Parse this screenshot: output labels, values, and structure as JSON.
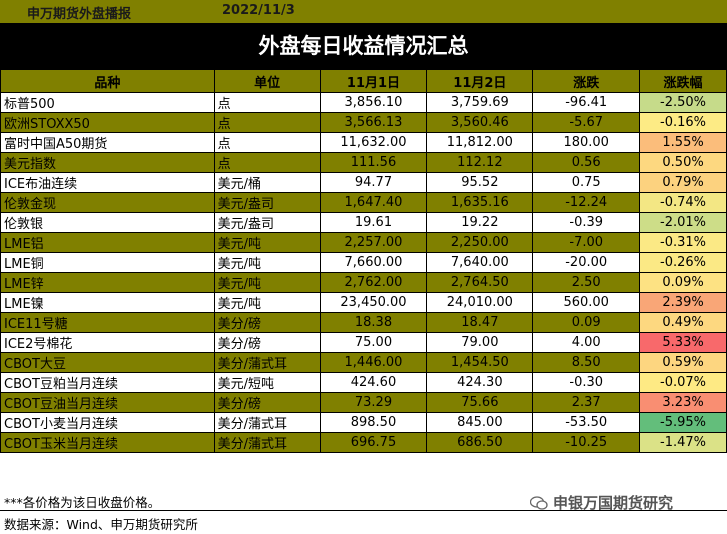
{
  "header": {
    "brand": "申万期货外盘播报",
    "date": "2022/11/3"
  },
  "title": "外盘每日收益情况汇总",
  "columns": [
    "品种",
    "单位",
    "11月1日",
    "11月2日",
    "涨跌",
    "涨跌幅"
  ],
  "rows": [
    {
      "name": "标普500",
      "unit": "点",
      "d1": "3,856.10",
      "d2": "3,759.69",
      "chg": "-96.41",
      "pct": "-2.50%",
      "pct_color": "#c6db8a"
    },
    {
      "name": "欧洲STOXX50",
      "unit": "点",
      "d1": "3,566.13",
      "d2": "3,560.46",
      "chg": "-5.67",
      "pct": "-0.16%",
      "pct_color": "#fdeb85"
    },
    {
      "name": "富时中国A50期货",
      "unit": "点",
      "d1": "11,632.00",
      "d2": "11,812.00",
      "chg": "180.00",
      "pct": "1.55%",
      "pct_color": "#fbbd7b"
    },
    {
      "name": "美元指数",
      "unit": "点",
      "d1": "111.56",
      "d2": "112.12",
      "chg": "0.56",
      "pct": "0.50%",
      "pct_color": "#fdd880"
    },
    {
      "name": "ICE布油连续",
      "unit": "美元/桶",
      "d1": "94.77",
      "d2": "95.52",
      "chg": "0.75",
      "pct": "0.79%",
      "pct_color": "#fcd27f"
    },
    {
      "name": "伦敦金现",
      "unit": "美元/盎司",
      "d1": "1,647.40",
      "d2": "1,635.16",
      "chg": "-12.24",
      "pct": "-0.74%",
      "pct_color": "#f3e784"
    },
    {
      "name": "伦敦银",
      "unit": "美元/盎司",
      "d1": "19.61",
      "d2": "19.22",
      "chg": "-0.39",
      "pct": "-2.01%",
      "pct_color": "#cddd88"
    },
    {
      "name": "LME铝",
      "unit": "美元/吨",
      "d1": "2,257.00",
      "d2": "2,250.00",
      "chg": "-7.00",
      "pct": "-0.31%",
      "pct_color": "#fbe985"
    },
    {
      "name": "LME铜",
      "unit": "美元/吨",
      "d1": "7,660.00",
      "d2": "7,640.00",
      "chg": "-20.00",
      "pct": "-0.26%",
      "pct_color": "#fbe985"
    },
    {
      "name": "LME锌",
      "unit": "美元/吨",
      "d1": "2,762.00",
      "d2": "2,764.50",
      "chg": "2.50",
      "pct": "0.09%",
      "pct_color": "#fde283"
    },
    {
      "name": "LME镍",
      "unit": "美元/吨",
      "d1": "23,450.00",
      "d2": "24,010.00",
      "chg": "560.00",
      "pct": "2.39%",
      "pct_color": "#f9a677"
    },
    {
      "name": "ICE11号糖",
      "unit": "美分/磅",
      "d1": "18.38",
      "d2": "18.47",
      "chg": "0.09",
      "pct": "0.49%",
      "pct_color": "#fdd880"
    },
    {
      "name": "ICE2号棉花",
      "unit": "美分/磅",
      "d1": "75.00",
      "d2": "79.00",
      "chg": "4.00",
      "pct": "5.33%",
      "pct_color": "#f8696b"
    },
    {
      "name": "CBOT大豆",
      "unit": "美分/蒲式耳",
      "d1": "1,446.00",
      "d2": "1,454.50",
      "chg": "8.50",
      "pct": "0.59%",
      "pct_color": "#fdd680"
    },
    {
      "name": "CBOT豆粕当月连续",
      "unit": "美元/短吨",
      "d1": "424.60",
      "d2": "424.30",
      "chg": "-0.30",
      "pct": "-0.07%",
      "pct_color": "#feea84"
    },
    {
      "name": "CBOT豆油当月连续",
      "unit": "美分/磅",
      "d1": "73.29",
      "d2": "75.66",
      "chg": "2.37",
      "pct": "3.23%",
      "pct_color": "#f98e72"
    },
    {
      "name": "CBOT小麦当月连续",
      "unit": "美分/蒲式耳",
      "d1": "898.50",
      "d2": "845.00",
      "chg": "-53.50",
      "pct": "-5.95%",
      "pct_color": "#63be7b"
    },
    {
      "name": "CBOT玉米当月连续",
      "unit": "美分/蒲式耳",
      "d1": "696.75",
      "d2": "686.50",
      "chg": "-10.25",
      "pct": "-1.47%",
      "pct_color": "#dbe287"
    }
  ],
  "footer": {
    "note": "***各价格为该日收盘价格。",
    "source": "数据来源：Wind、申万期货研究所"
  },
  "watermark": {
    "text": "申银万国期货研究",
    "icon": "wechat-icon"
  }
}
